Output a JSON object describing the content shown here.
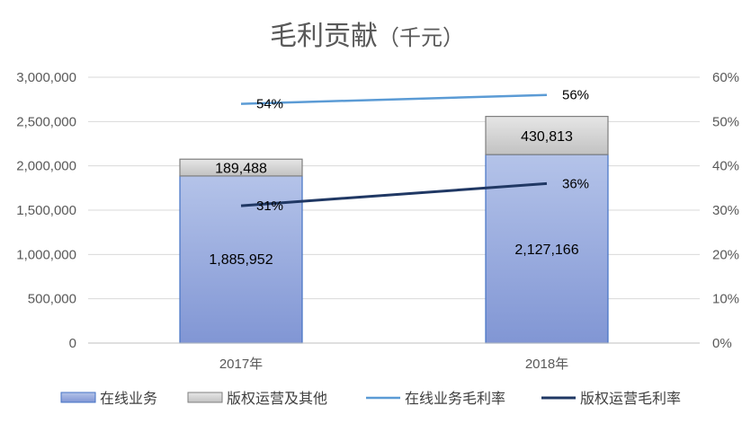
{
  "chart_data": {
    "type": "bar",
    "title": "毛利贡献",
    "title_unit": "（千元）",
    "categories": [
      "2017年",
      "2018年"
    ],
    "stacked": true,
    "series": [
      {
        "name": "在线业务",
        "type": "bar",
        "axis": "left",
        "values": [
          1885952,
          2127166
        ],
        "labels": [
          "1,885,952",
          "2,127,166"
        ],
        "color": "#8faadc"
      },
      {
        "name": "版权运营及其他",
        "type": "bar",
        "axis": "left",
        "values": [
          189488,
          430813
        ],
        "labels": [
          "189,488",
          "430,813"
        ],
        "color": "#d9d9d9"
      },
      {
        "name": "在线业务毛利率",
        "type": "line",
        "axis": "right",
        "values": [
          0.54,
          0.56
        ],
        "labels": [
          "54%",
          "56%"
        ],
        "color": "#5b9bd5"
      },
      {
        "name": "版权运营毛利率",
        "type": "line",
        "axis": "right",
        "values": [
          0.31,
          0.36
        ],
        "labels": [
          "31%",
          "36%"
        ],
        "color": "#203864"
      }
    ],
    "ylim_left": [
      0,
      3000000
    ],
    "ylim_right": [
      0,
      0.6
    ],
    "yticks_left": [
      "0",
      "500,000",
      "1,000,000",
      "1,500,000",
      "2,000,000",
      "2,500,000",
      "3,000,000"
    ],
    "yticks_right": [
      "0%",
      "10%",
      "20%",
      "30%",
      "40%",
      "50%",
      "60%"
    ],
    "grid": true,
    "legend_position": "bottom"
  }
}
